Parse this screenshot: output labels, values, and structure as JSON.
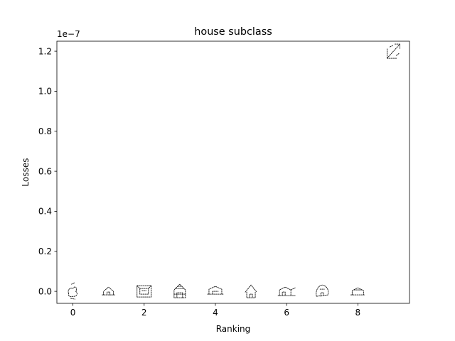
{
  "chart_data": {
    "type": "scatter",
    "title": "house subclass",
    "xlabel": "Ranking",
    "ylabel": "Losses",
    "y_offset_label": "1e−7",
    "xlim": [
      -0.45,
      9.45
    ],
    "ylim": [
      -0.06,
      1.25
    ],
    "y_scale_note": "values in units of 1e-7",
    "x_ticks": [
      0,
      2,
      4,
      6,
      8
    ],
    "x_tick_labels": [
      "0",
      "2",
      "4",
      "6",
      "8"
    ],
    "y_ticks": [
      0.0,
      0.2,
      0.4,
      0.6,
      0.8,
      1.0,
      1.2
    ],
    "y_tick_labels": [
      "0.0",
      "0.2",
      "0.4",
      "0.6",
      "0.8",
      "1.0",
      "1.2"
    ],
    "grid": false,
    "marker": "sketch-thumbnail",
    "points": [
      {
        "x": 0,
        "y": 0.0
      },
      {
        "x": 1,
        "y": 0.0
      },
      {
        "x": 2,
        "y": 0.0
      },
      {
        "x": 3,
        "y": 0.0
      },
      {
        "x": 4,
        "y": 0.0
      },
      {
        "x": 5,
        "y": 0.0
      },
      {
        "x": 6,
        "y": 0.0
      },
      {
        "x": 7,
        "y": 0.0
      },
      {
        "x": 8,
        "y": 0.0
      },
      {
        "x": 9,
        "y": 1.2
      }
    ]
  }
}
